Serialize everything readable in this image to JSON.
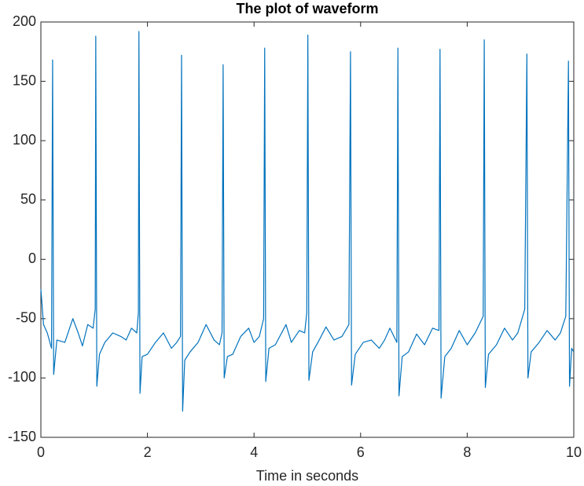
{
  "chart_data": {
    "type": "line",
    "title": "The plot of waveform",
    "x_label": "Time in seconds",
    "x": [
      0,
      0.05,
      0.12,
      0.2,
      0.22,
      0.24,
      0.3,
      0.45,
      0.6,
      0.7,
      0.78,
      0.88,
      0.98,
      1.02,
      1.03,
      1.05,
      1.1,
      1.2,
      1.35,
      1.5,
      1.6,
      1.7,
      1.8,
      1.83,
      1.84,
      1.86,
      1.9,
      2.0,
      2.15,
      2.3,
      2.45,
      2.55,
      2.62,
      2.64,
      2.66,
      2.7,
      2.8,
      2.95,
      3.1,
      3.25,
      3.35,
      3.4,
      3.42,
      3.44,
      3.5,
      3.6,
      3.75,
      3.9,
      4.0,
      4.1,
      4.18,
      4.2,
      4.22,
      4.28,
      4.4,
      4.6,
      4.7,
      4.85,
      4.95,
      4.99,
      5.01,
      5.03,
      5.1,
      5.2,
      5.35,
      5.5,
      5.65,
      5.78,
      5.81,
      5.83,
      5.9,
      6.05,
      6.2,
      6.35,
      6.45,
      6.55,
      6.68,
      6.7,
      6.72,
      6.78,
      6.9,
      7.05,
      7.2,
      7.35,
      7.47,
      7.49,
      7.51,
      7.58,
      7.7,
      7.85,
      8.0,
      8.15,
      8.3,
      8.32,
      8.34,
      8.4,
      8.55,
      8.7,
      8.85,
      8.95,
      9.08,
      9.12,
      9.14,
      9.2,
      9.35,
      9.5,
      9.65,
      9.75,
      9.85,
      9.9,
      9.92,
      9.96,
      10
    ],
    "values": [
      -25,
      -55,
      -62,
      -75,
      168,
      -97,
      -68,
      -70,
      -50,
      -62,
      -73,
      -55,
      -58,
      -42,
      188,
      -107,
      -80,
      -70,
      -62,
      -65,
      -68,
      -58,
      -62,
      -45,
      192,
      -113,
      -82,
      -80,
      -70,
      -62,
      -75,
      -70,
      -65,
      172,
      -128,
      -85,
      -78,
      -70,
      -55,
      -68,
      -72,
      -62,
      164,
      -100,
      -82,
      -80,
      -65,
      -58,
      -70,
      -65,
      -50,
      178,
      -103,
      -75,
      -72,
      -55,
      -70,
      -60,
      -62,
      -45,
      189,
      -102,
      -78,
      -70,
      -57,
      -68,
      -65,
      -55,
      175,
      -106,
      -80,
      -70,
      -68,
      -75,
      -68,
      -58,
      -70,
      178,
      -115,
      -82,
      -78,
      -63,
      -72,
      -58,
      -60,
      177,
      -117,
      -82,
      -75,
      -60,
      -72,
      -62,
      -48,
      185,
      -108,
      -80,
      -72,
      -58,
      -68,
      -62,
      -42,
      173,
      -100,
      -78,
      -70,
      -60,
      -68,
      -62,
      -48,
      167,
      -107,
      -75,
      -78
    ],
    "color": "#0072bd",
    "xlim": [
      0,
      10
    ],
    "xticks": [
      0,
      2,
      4,
      6,
      8,
      10
    ],
    "ylim": [
      -150,
      200
    ],
    "yticks": [
      -150,
      -100,
      -50,
      0,
      50,
      100,
      150,
      200
    ]
  }
}
